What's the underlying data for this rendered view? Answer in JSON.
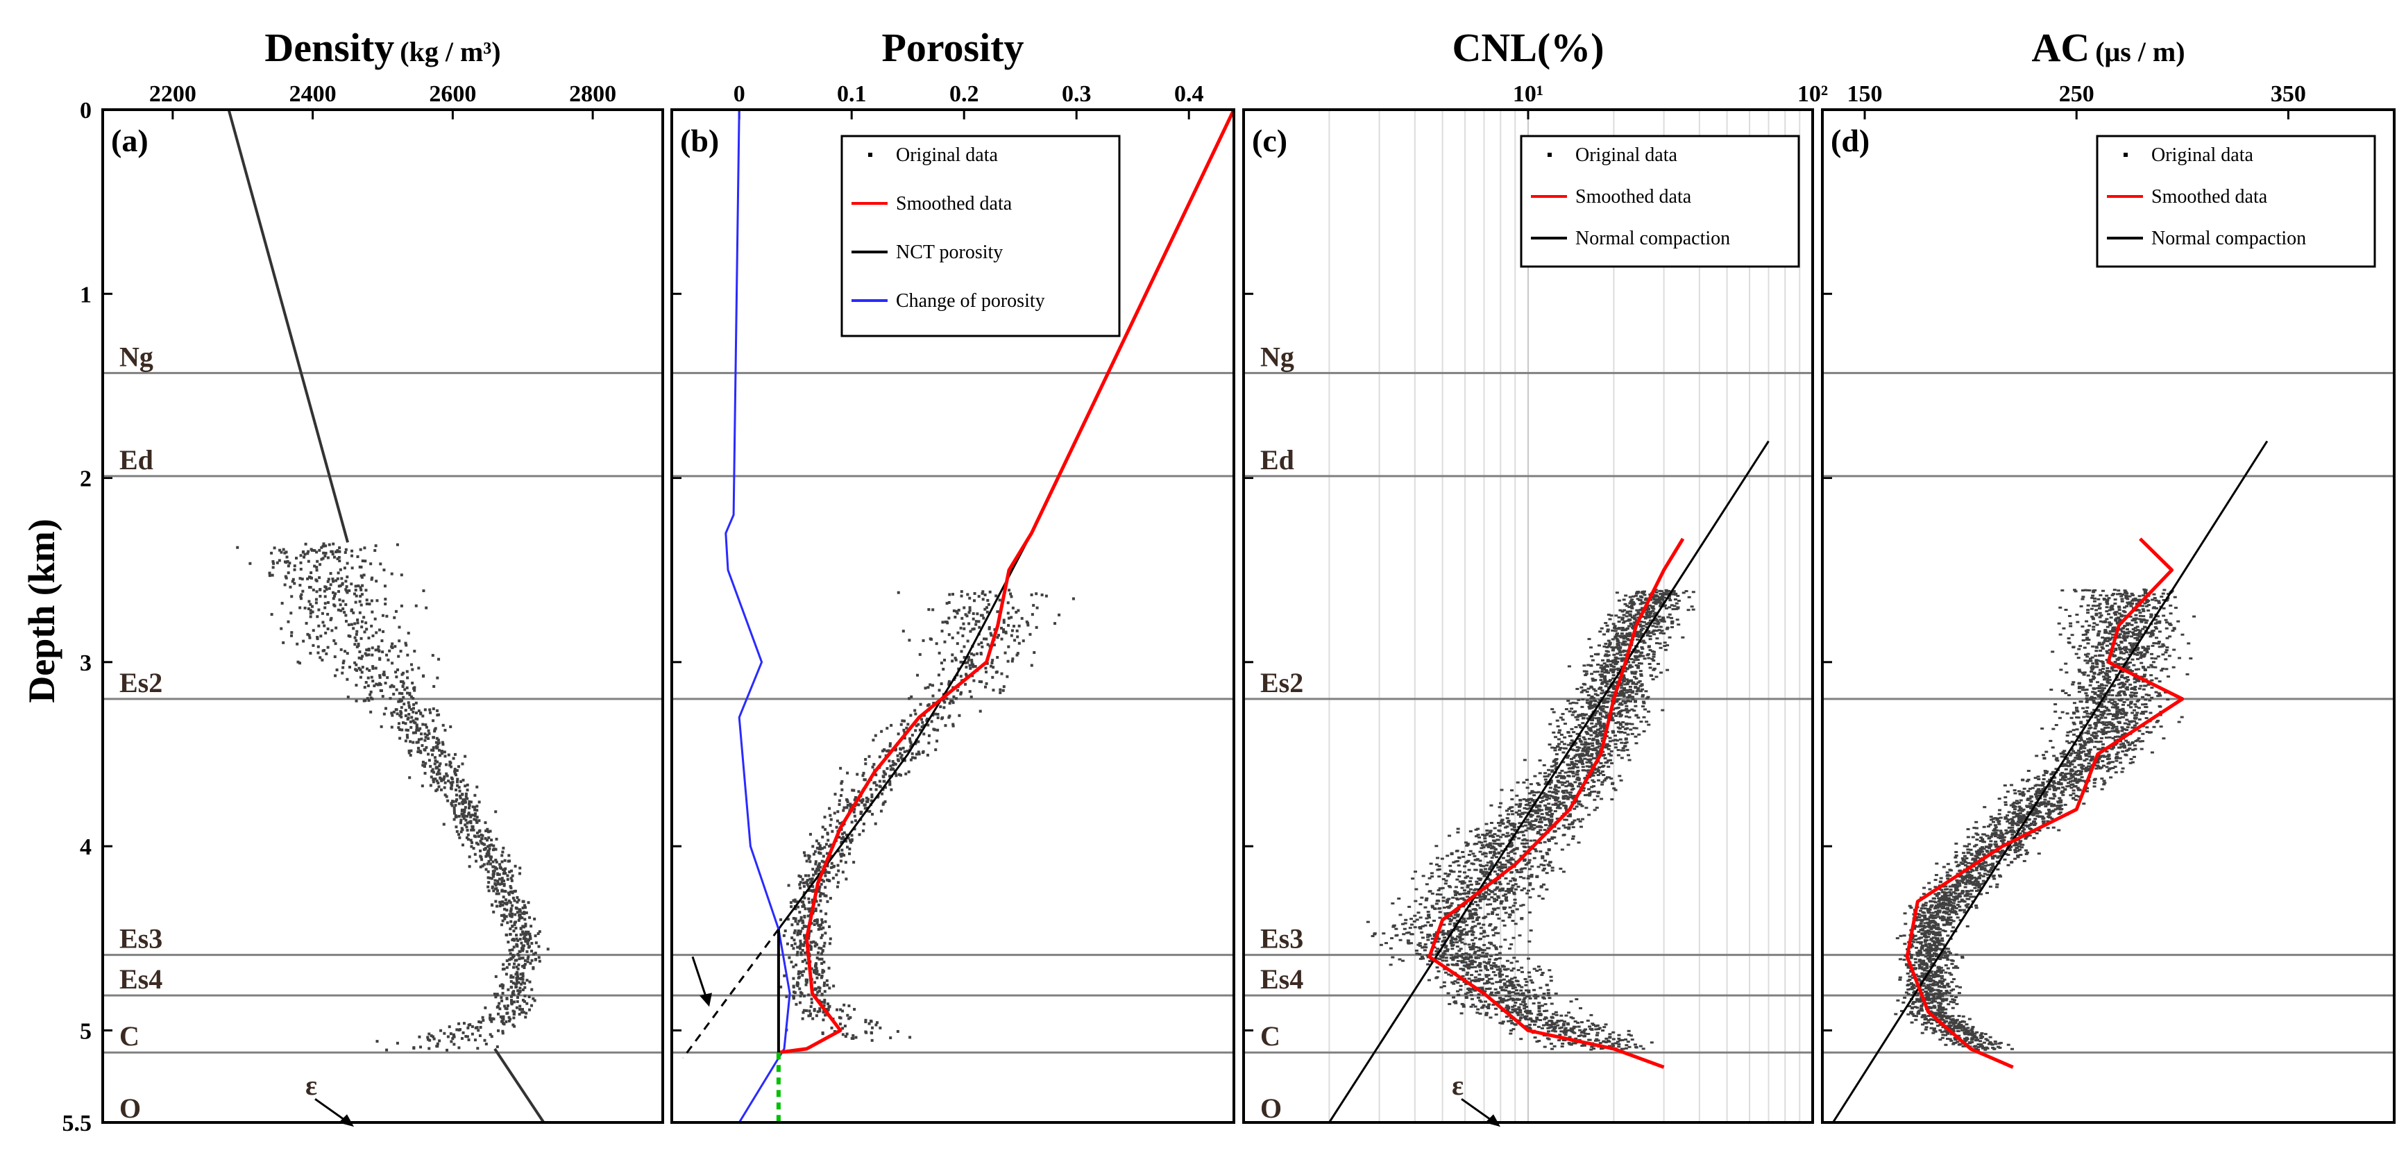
{
  "y_axis": {
    "label": "Depth (km)",
    "range": [
      0,
      5.5
    ],
    "ticks": [
      {
        "v": 0,
        "t": "0"
      },
      {
        "v": 1,
        "t": "1"
      },
      {
        "v": 2,
        "t": "2"
      },
      {
        "v": 3,
        "t": "3"
      },
      {
        "v": 4,
        "t": "4"
      },
      {
        "v": 5,
        "t": "5"
      },
      {
        "v": 5.5,
        "t": "5.5"
      }
    ]
  },
  "formations": [
    {
      "name": "Ng",
      "depth": 1.43
    },
    {
      "name": "Ed",
      "depth": 1.99
    },
    {
      "name": "Es2",
      "depth": 3.2
    },
    {
      "name": "Es3",
      "depth": 4.59
    },
    {
      "name": "Es4",
      "depth": 4.81
    },
    {
      "name": "C",
      "depth": 5.12
    },
    {
      "name": "O",
      "depth": 5.42
    }
  ],
  "annotations": {
    "epsilon": "ε"
  },
  "colors": {
    "scatter": "#404040",
    "smoothed": "#ff0000",
    "nct": "#000000",
    "change": "#2a2aff",
    "green_segment": "#00c000",
    "formation_line": "#808080",
    "formation_label": "#3a2a22"
  },
  "chart_data": [
    {
      "type": "scatter",
      "letter": "(a)",
      "title": "Density",
      "unit": "(kg / m³)",
      "xlabel": "Density (kg/m³)",
      "ylabel": "Depth (km)",
      "xlim": [
        2100,
        2900
      ],
      "xticks": [
        {
          "v": 2200,
          "t": "2200"
        },
        {
          "v": 2400,
          "t": "2400"
        },
        {
          "v": 2600,
          "t": "2600"
        },
        {
          "v": 2800,
          "t": "2800"
        }
      ],
      "trend": [
        {
          "x": 2280,
          "y": 0.0
        },
        {
          "x": 2450,
          "y": 2.35
        }
      ],
      "trend_deep": [
        {
          "x": 2660,
          "y": 5.1
        },
        {
          "x": 2730,
          "y": 5.5
        }
      ],
      "cloud": [
        {
          "y": 2.35,
          "x": 2400,
          "s": 150
        },
        {
          "y": 2.8,
          "x": 2450,
          "s": 170
        },
        {
          "y": 3.3,
          "x": 2540,
          "s": 70
        },
        {
          "y": 3.7,
          "x": 2600,
          "s": 55
        },
        {
          "y": 4.1,
          "x": 2660,
          "s": 45
        },
        {
          "y": 4.5,
          "x": 2700,
          "s": 45
        },
        {
          "y": 4.9,
          "x": 2680,
          "s": 50
        },
        {
          "y": 5.1,
          "x": 2560,
          "s": 130
        }
      ]
    },
    {
      "type": "line",
      "letter": "(b)",
      "title": "Porosity",
      "xlabel": "Porosity",
      "ylabel": "Depth (km)",
      "xlim": [
        -0.06,
        0.44
      ],
      "xticks": [
        {
          "v": 0,
          "t": "0"
        },
        {
          "v": 0.1,
          "t": "0.1"
        },
        {
          "v": 0.2,
          "t": "0.2"
        },
        {
          "v": 0.3,
          "t": "0.3"
        },
        {
          "v": 0.4,
          "t": "0.4"
        }
      ],
      "legend": [
        "Original data",
        "Smoothed data",
        "NCT porosity",
        "Change of porosity"
      ],
      "series": [
        {
          "name": "Smoothed data",
          "points": [
            {
              "y": 0.0,
              "x": 0.44
            },
            {
              "y": 2.3,
              "x": 0.26
            },
            {
              "y": 2.5,
              "x": 0.24
            },
            {
              "y": 2.8,
              "x": 0.23
            },
            {
              "y": 3.0,
              "x": 0.22
            },
            {
              "y": 3.3,
              "x": 0.16
            },
            {
              "y": 3.6,
              "x": 0.12
            },
            {
              "y": 3.9,
              "x": 0.09
            },
            {
              "y": 4.2,
              "x": 0.07
            },
            {
              "y": 4.5,
              "x": 0.06
            },
            {
              "y": 4.8,
              "x": 0.065
            },
            {
              "y": 5.0,
              "x": 0.09
            },
            {
              "y": 5.1,
              "x": 0.06
            },
            {
              "y": 5.12,
              "x": 0.035
            }
          ]
        },
        {
          "name": "NCT porosity",
          "points": [
            {
              "y": 0.0,
              "x": 0.44
            },
            {
              "y": 2.3,
              "x": 0.26
            },
            {
              "y": 3.0,
              "x": 0.2
            },
            {
              "y": 3.5,
              "x": 0.15
            },
            {
              "y": 4.0,
              "x": 0.09
            },
            {
              "y": 4.45,
              "x": 0.035
            }
          ]
        },
        {
          "name": "Change of porosity",
          "points": [
            {
              "y": 0.0,
              "x": 0.0
            },
            {
              "y": 2.2,
              "x": -0.005
            },
            {
              "y": 2.3,
              "x": -0.012
            },
            {
              "y": 2.5,
              "x": -0.01
            },
            {
              "y": 3.0,
              "x": 0.02
            },
            {
              "y": 3.3,
              "x": 0.0
            },
            {
              "y": 4.0,
              "x": 0.01
            },
            {
              "y": 4.45,
              "x": 0.035
            },
            {
              "y": 4.8,
              "x": 0.045
            },
            {
              "y": 5.1,
              "x": 0.04
            },
            {
              "y": 5.5,
              "x": 0.0
            }
          ]
        }
      ],
      "nct_extension": [
        {
          "x": 0.035,
          "y": 4.45
        },
        {
          "x": -0.05,
          "y": 5.15
        }
      ],
      "marker_line": {
        "x": 0.035,
        "y0": 4.45,
        "y1": 5.12
      },
      "green_segment": {
        "x": 0.035,
        "y0": 5.12,
        "y1": 5.5
      },
      "cloud": [
        {
          "y": 2.6,
          "x": 0.22,
          "s": 0.12
        },
        {
          "y": 3.0,
          "x": 0.21,
          "s": 0.08
        },
        {
          "y": 3.4,
          "x": 0.15,
          "s": 0.05
        },
        {
          "y": 3.9,
          "x": 0.09,
          "s": 0.04
        },
        {
          "y": 4.3,
          "x": 0.06,
          "s": 0.03
        },
        {
          "y": 4.8,
          "x": 0.06,
          "s": 0.04
        },
        {
          "y": 5.05,
          "x": 0.11,
          "s": 0.09
        }
      ]
    },
    {
      "type": "line",
      "letter": "(c)",
      "title": "CNL(%)",
      "xlabel": "CNL (%)",
      "ylabel": "Depth (km)",
      "xscale": "log",
      "xlim": [
        1,
        100
      ],
      "xticks": [
        {
          "v": 10,
          "t": "10¹"
        },
        {
          "v": 100,
          "t": "10²"
        }
      ],
      "legend": [
        "Original data",
        "Smoothed data",
        "Normal compaction"
      ],
      "series": [
        {
          "name": "Smoothed data",
          "points": [
            {
              "y": 2.33,
              "x": 35
            },
            {
              "y": 2.5,
              "x": 30
            },
            {
              "y": 2.8,
              "x": 24
            },
            {
              "y": 3.0,
              "x": 22
            },
            {
              "y": 3.2,
              "x": 20
            },
            {
              "y": 3.5,
              "x": 18
            },
            {
              "y": 3.8,
              "x": 14
            },
            {
              "y": 4.1,
              "x": 9
            },
            {
              "y": 4.4,
              "x": 5
            },
            {
              "y": 4.6,
              "x": 4.5
            },
            {
              "y": 4.8,
              "x": 7
            },
            {
              "y": 5.0,
              "x": 10
            },
            {
              "y": 5.1,
              "x": 20
            },
            {
              "y": 5.2,
              "x": 30
            }
          ]
        },
        {
          "name": "Normal compaction",
          "points": [
            {
              "y": 1.8,
              "x": 70
            },
            {
              "y": 5.5,
              "x": 2
            }
          ]
        }
      ],
      "cloud": [
        {
          "y": 2.6,
          "x": 28,
          "s": 12
        },
        {
          "y": 3.0,
          "x": 21,
          "s": 10
        },
        {
          "y": 3.5,
          "x": 16,
          "s": 9
        },
        {
          "y": 4.0,
          "x": 8,
          "s": 7
        },
        {
          "y": 4.5,
          "x": 5,
          "s": 5
        },
        {
          "y": 4.9,
          "x": 9,
          "s": 7
        },
        {
          "y": 5.1,
          "x": 18,
          "s": 12
        }
      ]
    },
    {
      "type": "line",
      "letter": "(d)",
      "title": "AC",
      "unit": "(μs / m)",
      "xlabel": "AC (μs/m)",
      "ylabel": "Depth (km)",
      "xlim": [
        130,
        400
      ],
      "xticks": [
        {
          "v": 150,
          "t": "150"
        },
        {
          "v": 250,
          "t": "250"
        },
        {
          "v": 350,
          "t": "350"
        }
      ],
      "legend": [
        "Original data",
        "Smoothed data",
        "Normal compaction"
      ],
      "series": [
        {
          "name": "Smoothed data",
          "points": [
            {
              "y": 2.33,
              "x": 280
            },
            {
              "y": 2.5,
              "x": 295
            },
            {
              "y": 2.8,
              "x": 270
            },
            {
              "y": 3.0,
              "x": 265
            },
            {
              "y": 3.2,
              "x": 300
            },
            {
              "y": 3.5,
              "x": 260
            },
            {
              "y": 3.8,
              "x": 250
            },
            {
              "y": 4.0,
              "x": 215
            },
            {
              "y": 4.3,
              "x": 175
            },
            {
              "y": 4.6,
              "x": 170
            },
            {
              "y": 4.9,
              "x": 180
            },
            {
              "y": 5.1,
              "x": 200
            },
            {
              "y": 5.2,
              "x": 220
            }
          ]
        },
        {
          "name": "Normal compaction",
          "points": [
            {
              "y": 1.8,
              "x": 340
            },
            {
              "y": 5.5,
              "x": 135
            }
          ]
        }
      ],
      "cloud": [
        {
          "y": 2.6,
          "x": 275,
          "s": 45
        },
        {
          "y": 3.0,
          "x": 270,
          "s": 40
        },
        {
          "y": 3.4,
          "x": 265,
          "s": 40
        },
        {
          "y": 3.9,
          "x": 220,
          "s": 30
        },
        {
          "y": 4.4,
          "x": 180,
          "s": 20
        },
        {
          "y": 4.9,
          "x": 180,
          "s": 22
        },
        {
          "y": 5.1,
          "x": 205,
          "s": 25
        }
      ]
    }
  ]
}
